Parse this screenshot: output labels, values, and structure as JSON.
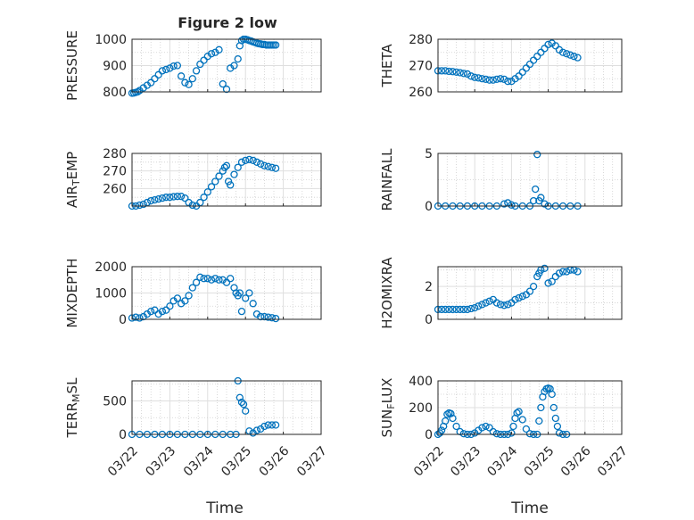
{
  "figure": {
    "title": "Figure 2 low"
  },
  "marker_color": "#0072BD",
  "chart_data": [
    {
      "type": "scatter",
      "name": "PRESSURE",
      "ylabel": "PRESSURE",
      "xlim": [
        "03/22",
        "03/27"
      ],
      "ylim": [
        800,
        1000
      ],
      "x_ticks": [
        "03/22",
        "03/23",
        "03/24",
        "03/25",
        "03/26",
        "03/27"
      ],
      "y_ticks": [
        800,
        900,
        1000
      ],
      "grid": true,
      "x": [
        0,
        0.05,
        0.1,
        0.15,
        0.2,
        0.3,
        0.4,
        0.5,
        0.6,
        0.7,
        0.8,
        0.9,
        1.0,
        1.1,
        1.2,
        1.3,
        1.4,
        1.5,
        1.6,
        1.7,
        1.8,
        1.9,
        2.0,
        2.1,
        2.2,
        2.3,
        2.4,
        2.5,
        2.6,
        2.7,
        2.8,
        2.85,
        2.9,
        2.95,
        3.0,
        3.05,
        3.1,
        3.15,
        3.2,
        3.25,
        3.3,
        3.35,
        3.4,
        3.45,
        3.5,
        3.55,
        3.6,
        3.65,
        3.7,
        3.75,
        3.8
      ],
      "y": [
        795,
        796,
        798,
        800,
        805,
        815,
        825,
        835,
        850,
        865,
        880,
        885,
        890,
        898,
        900,
        860,
        835,
        828,
        850,
        880,
        905,
        920,
        935,
        945,
        950,
        960,
        830,
        810,
        890,
        900,
        925,
        975,
        995,
        1000,
        1000,
        998,
        995,
        993,
        990,
        988,
        985,
        983,
        982,
        980,
        980,
        978,
        978,
        978,
        978,
        978,
        978
      ]
    },
    {
      "type": "scatter",
      "name": "THETA",
      "ylabel": "THETA",
      "xlim": [
        "03/22",
        "03/27"
      ],
      "ylim": [
        260,
        280
      ],
      "x_ticks": [
        "03/22",
        "03/23",
        "03/24",
        "03/25",
        "03/26",
        "03/27"
      ],
      "y_ticks": [
        260,
        270,
        280
      ],
      "grid": true,
      "x": [
        0,
        0.1,
        0.2,
        0.3,
        0.4,
        0.5,
        0.6,
        0.7,
        0.8,
        0.9,
        1.0,
        1.1,
        1.2,
        1.3,
        1.4,
        1.5,
        1.6,
        1.7,
        1.8,
        1.9,
        2.0,
        2.1,
        2.2,
        2.3,
        2.4,
        2.5,
        2.6,
        2.7,
        2.8,
        2.9,
        3.0,
        3.1,
        3.2,
        3.3,
        3.4,
        3.5,
        3.6,
        3.7,
        3.8
      ],
      "y": [
        268,
        268,
        268,
        267.8,
        267.7,
        267.5,
        267.3,
        267,
        266.8,
        266,
        265.5,
        265.3,
        265,
        264.8,
        264.5,
        264.5,
        264.8,
        265,
        264.8,
        264,
        264,
        265,
        266,
        267.5,
        269,
        270.5,
        272,
        273.5,
        275,
        276.5,
        278,
        278.5,
        277.5,
        276,
        275,
        274.5,
        274,
        273.5,
        273
      ]
    },
    {
      "type": "scatter",
      "name": "AIR_TEMP",
      "ylabel": "AIR_TEMP",
      "xlim": [
        "03/22",
        "03/27"
      ],
      "ylim": [
        250,
        280
      ],
      "x_ticks": [
        "03/22",
        "03/23",
        "03/24",
        "03/25",
        "03/26",
        "03/27"
      ],
      "y_ticks": [
        260,
        270,
        280
      ],
      "grid": true,
      "x": [
        0,
        0.1,
        0.2,
        0.3,
        0.4,
        0.5,
        0.6,
        0.7,
        0.8,
        0.9,
        1.0,
        1.1,
        1.2,
        1.3,
        1.4,
        1.5,
        1.6,
        1.7,
        1.8,
        1.9,
        2.0,
        2.1,
        2.2,
        2.3,
        2.4,
        2.45,
        2.5,
        2.55,
        2.6,
        2.7,
        2.8,
        2.9,
        3.0,
        3.1,
        3.2,
        3.3,
        3.4,
        3.5,
        3.6,
        3.7,
        3.8
      ],
      "y": [
        250,
        250,
        250.5,
        251,
        252,
        253,
        253.5,
        254,
        254.5,
        255,
        255,
        255.3,
        255.5,
        255.5,
        254.5,
        252,
        250.5,
        250,
        252,
        255,
        258,
        261,
        264,
        267,
        270,
        272,
        273,
        264,
        262,
        268,
        272,
        275,
        276,
        276.5,
        276,
        275,
        274,
        273,
        272.5,
        272,
        271.5
      ]
    },
    {
      "type": "scatter",
      "name": "RAINFALL",
      "ylabel": "RAINFALL",
      "xlim": [
        "03/22",
        "03/27"
      ],
      "ylim": [
        0,
        5
      ],
      "x_ticks": [
        "03/22",
        "03/23",
        "03/24",
        "03/25",
        "03/26",
        "03/27"
      ],
      "y_ticks": [
        0,
        5
      ],
      "grid": true,
      "x": [
        0,
        0.2,
        0.4,
        0.6,
        0.8,
        1.0,
        1.2,
        1.4,
        1.6,
        1.8,
        1.9,
        2.0,
        2.1,
        2.3,
        2.5,
        2.6,
        2.65,
        2.7,
        2.75,
        2.8,
        2.9,
        3.0,
        3.2,
        3.4,
        3.6,
        3.8
      ],
      "y": [
        0,
        0,
        0,
        0,
        0,
        0,
        0,
        0,
        0,
        0.2,
        0.3,
        0.1,
        0,
        0,
        0,
        0.5,
        1.6,
        4.9,
        0.5,
        0.8,
        0.2,
        0,
        0,
        0,
        0,
        0
      ]
    },
    {
      "type": "scatter",
      "name": "MIXDEPTH",
      "ylabel": "MIXDEPTH",
      "xlim": [
        "03/22",
        "03/27"
      ],
      "ylim": [
        0,
        2000
      ],
      "x_ticks": [
        "03/22",
        "03/23",
        "03/24",
        "03/25",
        "03/26",
        "03/27"
      ],
      "y_ticks": [
        0,
        1000,
        2000
      ],
      "grid": true,
      "x": [
        0,
        0.1,
        0.2,
        0.3,
        0.4,
        0.5,
        0.6,
        0.7,
        0.8,
        0.9,
        1.0,
        1.1,
        1.2,
        1.3,
        1.4,
        1.5,
        1.6,
        1.7,
        1.8,
        1.9,
        2.0,
        2.1,
        2.2,
        2.3,
        2.4,
        2.5,
        2.6,
        2.7,
        2.75,
        2.8,
        2.85,
        2.9,
        3.0,
        3.1,
        3.2,
        3.3,
        3.4,
        3.5,
        3.6,
        3.7,
        3.8
      ],
      "y": [
        50,
        80,
        50,
        100,
        200,
        300,
        350,
        200,
        300,
        350,
        500,
        700,
        800,
        600,
        700,
        900,
        1200,
        1400,
        1600,
        1550,
        1550,
        1500,
        1550,
        1500,
        1500,
        1400,
        1550,
        1200,
        1000,
        900,
        1000,
        300,
        800,
        1000,
        600,
        200,
        100,
        100,
        80,
        60,
        30
      ]
    },
    {
      "type": "scatter",
      "name": "H2OMIXRA",
      "ylabel": "H2OMIXRA",
      "xlim": [
        "03/22",
        "03/27"
      ],
      "ylim": [
        0,
        3.2
      ],
      "x_ticks": [
        "03/22",
        "03/23",
        "03/24",
        "03/25",
        "03/26",
        "03/27"
      ],
      "y_ticks": [
        0,
        2
      ],
      "grid": true,
      "x": [
        0,
        0.1,
        0.2,
        0.3,
        0.4,
        0.5,
        0.6,
        0.7,
        0.8,
        0.9,
        1.0,
        1.1,
        1.2,
        1.3,
        1.4,
        1.5,
        1.6,
        1.7,
        1.8,
        1.9,
        2.0,
        2.1,
        2.2,
        2.3,
        2.4,
        2.5,
        2.6,
        2.7,
        2.75,
        2.8,
        2.9,
        3.0,
        3.1,
        3.2,
        3.3,
        3.4,
        3.5,
        3.6,
        3.7,
        3.8
      ],
      "y": [
        0.6,
        0.6,
        0.6,
        0.6,
        0.6,
        0.6,
        0.6,
        0.6,
        0.6,
        0.65,
        0.7,
        0.8,
        0.9,
        1.0,
        1.1,
        1.2,
        1.0,
        0.9,
        0.85,
        0.9,
        1.0,
        1.2,
        1.3,
        1.4,
        1.5,
        1.7,
        2.0,
        2.6,
        2.8,
        3.0,
        3.1,
        2.2,
        2.3,
        2.6,
        2.8,
        2.9,
        2.9,
        3.0,
        3.0,
        2.9
      ]
    },
    {
      "type": "scatter",
      "name": "TERR_MSL",
      "ylabel": "TERR_MSL",
      "xlim": [
        "03/22",
        "03/27"
      ],
      "ylim": [
        0,
        800
      ],
      "x_ticks": [
        "03/22",
        "03/23",
        "03/24",
        "03/25",
        "03/26",
        "03/27"
      ],
      "y_ticks": [
        0,
        500
      ],
      "grid": true,
      "x": [
        0,
        0.2,
        0.4,
        0.6,
        0.8,
        1.0,
        1.2,
        1.4,
        1.6,
        1.8,
        2.0,
        2.2,
        2.4,
        2.6,
        2.75,
        2.8,
        2.85,
        2.9,
        2.95,
        3.0,
        3.1,
        3.2,
        3.3,
        3.4,
        3.5,
        3.6,
        3.7,
        3.8
      ],
      "y": [
        0,
        0,
        0,
        0,
        0,
        0,
        0,
        0,
        0,
        0,
        0,
        0,
        0,
        0,
        0,
        800,
        550,
        480,
        450,
        350,
        50,
        20,
        60,
        80,
        120,
        140,
        140,
        140
      ]
    },
    {
      "type": "scatter",
      "name": "SUN_FLUX",
      "ylabel": "SUN_FLUX",
      "xlim": [
        "03/22",
        "03/27"
      ],
      "ylim": [
        0,
        400
      ],
      "x_ticks": [
        "03/22",
        "03/23",
        "03/24",
        "03/25",
        "03/26",
        "03/27"
      ],
      "y_ticks": [
        0,
        200,
        400
      ],
      "grid": true,
      "x": [
        0,
        0.05,
        0.1,
        0.15,
        0.2,
        0.25,
        0.3,
        0.35,
        0.4,
        0.5,
        0.6,
        0.7,
        0.8,
        0.9,
        1.0,
        1.1,
        1.2,
        1.3,
        1.4,
        1.5,
        1.6,
        1.7,
        1.8,
        1.9,
        2.0,
        2.05,
        2.1,
        2.15,
        2.2,
        2.3,
        2.4,
        2.5,
        2.6,
        2.7,
        2.75,
        2.8,
        2.85,
        2.9,
        2.95,
        3.0,
        3.05,
        3.1,
        3.15,
        3.2,
        3.25,
        3.3,
        3.4,
        3.5
      ],
      "y": [
        0,
        10,
        30,
        60,
        100,
        150,
        160,
        155,
        120,
        60,
        20,
        5,
        0,
        0,
        10,
        30,
        50,
        60,
        50,
        20,
        5,
        0,
        0,
        0,
        10,
        60,
        120,
        160,
        170,
        110,
        40,
        5,
        0,
        0,
        100,
        200,
        280,
        320,
        340,
        345,
        340,
        300,
        200,
        120,
        60,
        10,
        0,
        0
      ]
    }
  ],
  "axes_labels": {
    "xlabel_left": "Time",
    "xlabel_right": "Time",
    "ylabels": [
      {
        "main": "PRESSURE"
      },
      {
        "main": "THETA"
      },
      {
        "main": "AIR",
        "sub": "T",
        "rest": "EMP"
      },
      {
        "main": "RAINFALL"
      },
      {
        "main": "MIXDEPTH"
      },
      {
        "main": "H2OMIXRA"
      },
      {
        "main": "TERR",
        "sub": "M",
        "rest": "SL"
      },
      {
        "main": "SUN",
        "sub": "F",
        "rest": "LUX"
      }
    ],
    "x_tick_labels": [
      "03/22",
      "03/23",
      "03/24",
      "03/25",
      "03/26",
      "03/27"
    ]
  }
}
